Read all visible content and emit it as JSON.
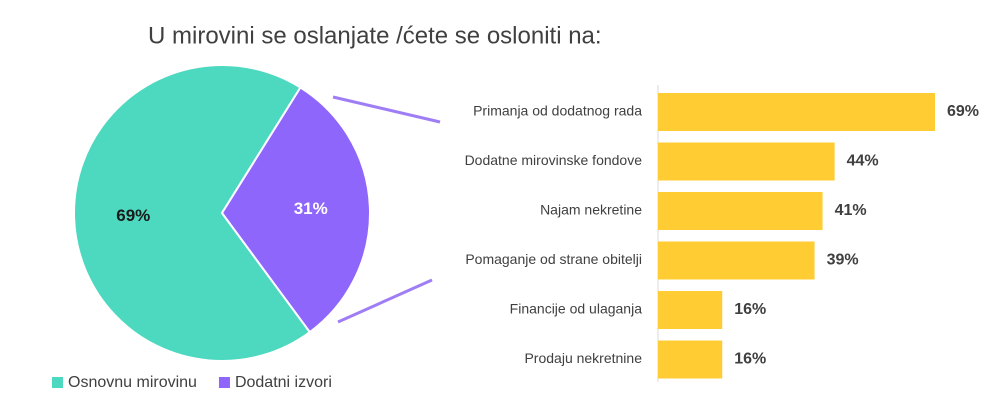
{
  "chart_data": [
    {
      "type": "pie",
      "title": "U mirovini se oslanjate /ćete se osloniti na:",
      "categories": [
        "Osnovnu mirovinu",
        "Dodatni izvori"
      ],
      "values": [
        69,
        31
      ],
      "value_labels": [
        "69%",
        "31%"
      ],
      "colors": [
        "#4dd9c0",
        "#8f66fc"
      ],
      "label_colors": [
        "#1a1a1a",
        "#ffffff"
      ]
    },
    {
      "type": "bar",
      "categories": [
        "Primanja od dodatnog rada",
        "Dodatne mirovinske fondove",
        "Najam nekretine",
        "Pomaganje od strane obitelji",
        "Financije od ulaganja",
        "Prodaju nekretnine"
      ],
      "values": [
        69,
        44,
        41,
        39,
        16,
        16
      ],
      "value_labels": [
        "69%",
        "44%",
        "41%",
        "39%",
        "16%",
        "16%"
      ],
      "color": "#ffcc33"
    }
  ]
}
